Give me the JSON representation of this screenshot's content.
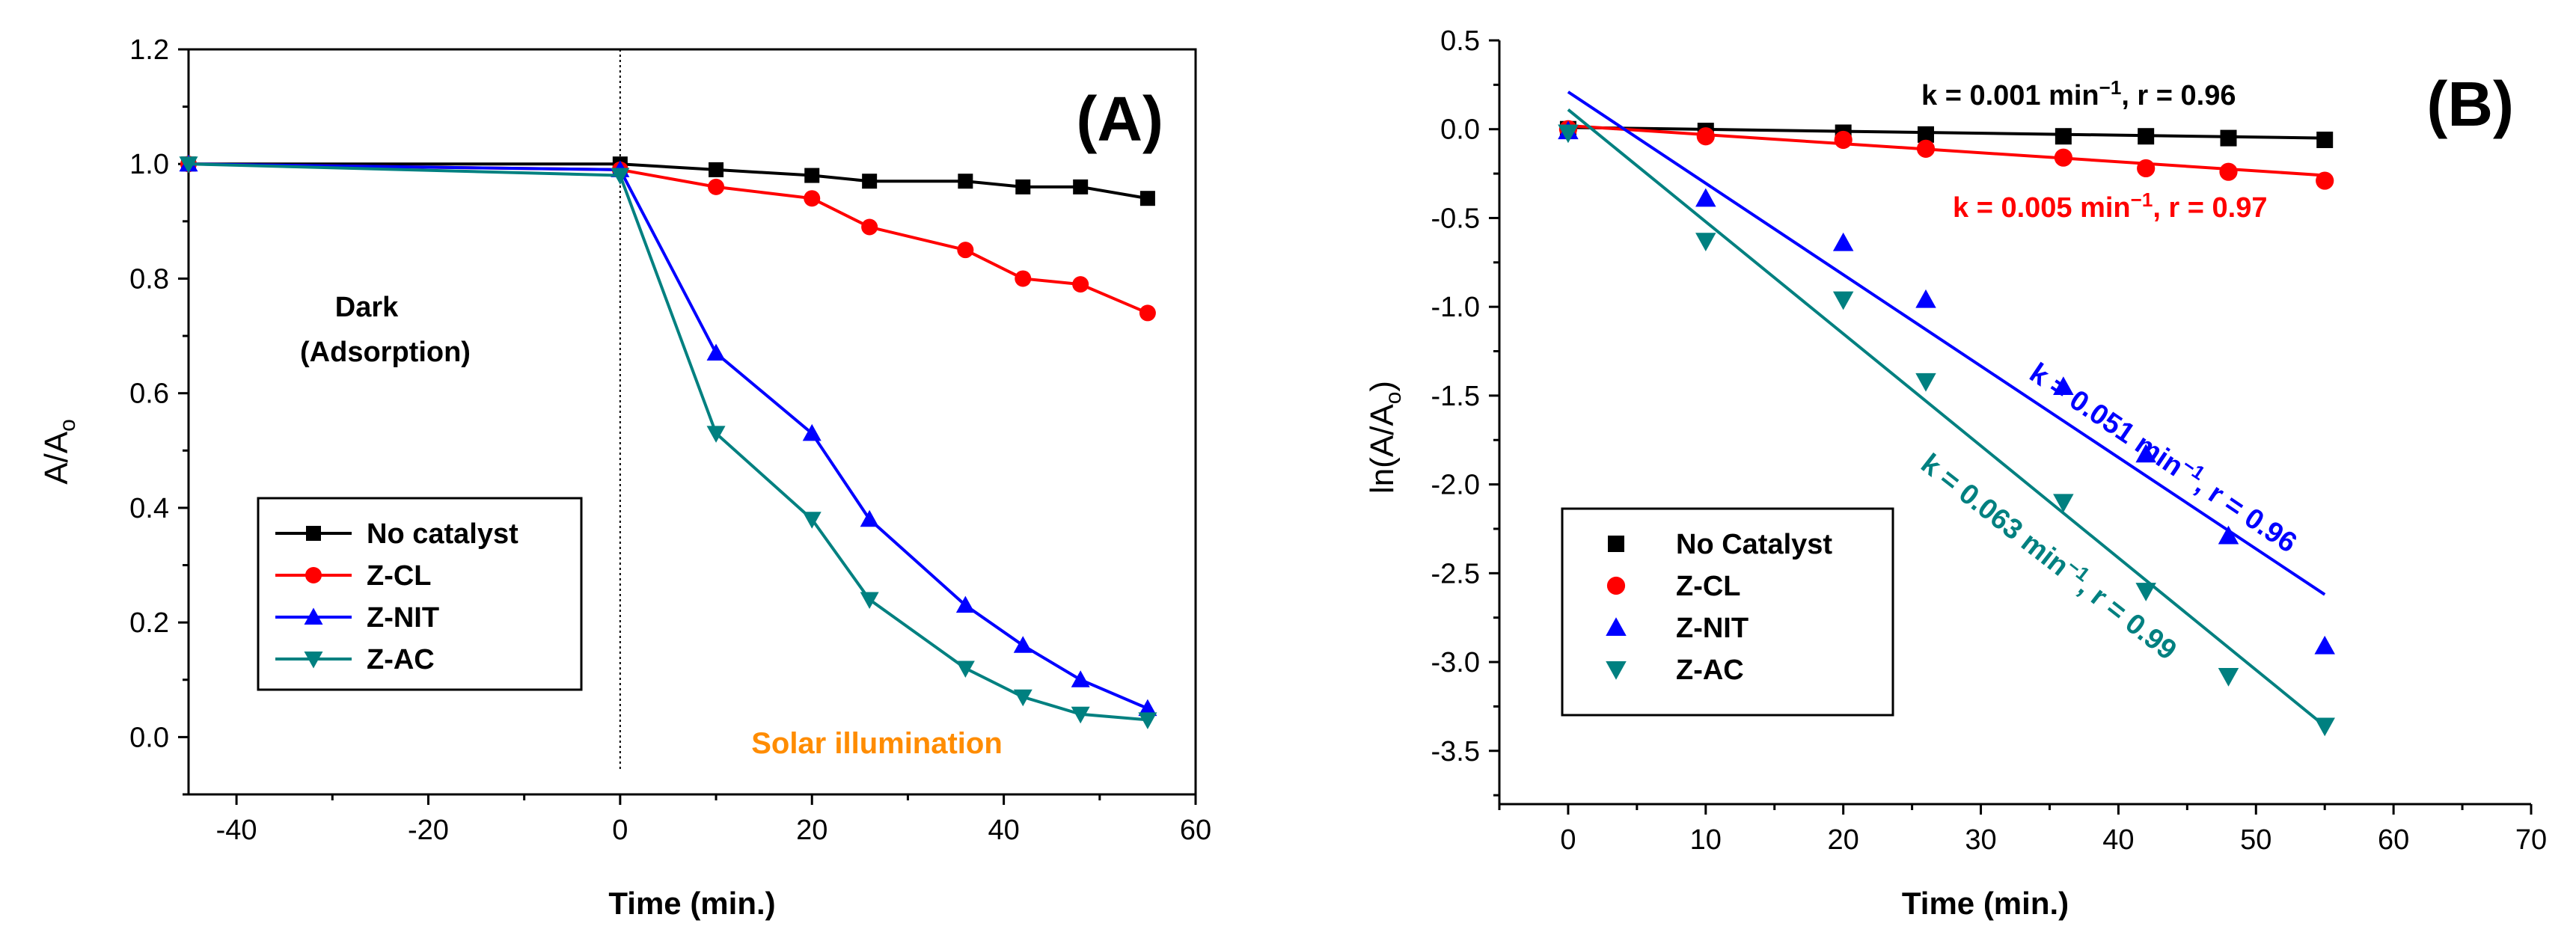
{
  "chart_data": [
    {
      "type": "line",
      "panel_label": "(A)",
      "xlabel": "Time (min.)",
      "ylabel": "A/A",
      "ylabel_sub": "o",
      "xlim": [
        -45,
        60
      ],
      "ylim": [
        -0.1,
        1.2
      ],
      "xticks": [
        -40,
        -20,
        0,
        20,
        40,
        60
      ],
      "yticks": [
        0.0,
        0.2,
        0.4,
        0.6,
        0.8,
        1.0,
        1.2
      ],
      "ytick_labels": [
        "0.0",
        "0.2",
        "0.4",
        "0.6",
        "0.8",
        "1.0",
        "1.2"
      ],
      "divider_x": 0,
      "annotations": {
        "dark_line1": "Dark",
        "dark_line2": "(Adsorption)",
        "solar": "Solar illumination"
      },
      "legend": [
        "No catalyst",
        "Z-CL",
        "Z-NIT",
        "Z-AC"
      ],
      "series": [
        {
          "name": "No catalyst",
          "color": "#000000",
          "marker": "square",
          "x": [
            -45,
            0,
            10,
            20,
            26,
            36,
            42,
            48,
            55
          ],
          "y": [
            1.0,
            1.0,
            0.99,
            0.98,
            0.97,
            0.97,
            0.96,
            0.96,
            0.94
          ]
        },
        {
          "name": "Z-CL",
          "color": "#ff0000",
          "marker": "circle",
          "x": [
            -45,
            0,
            10,
            20,
            26,
            36,
            42,
            48,
            55
          ],
          "y": [
            1.0,
            0.99,
            0.96,
            0.94,
            0.89,
            0.85,
            0.8,
            0.79,
            0.74
          ]
        },
        {
          "name": "Z-NIT",
          "color": "#0000ff",
          "marker": "triangle-up",
          "x": [
            -45,
            0,
            10,
            20,
            26,
            36,
            42,
            48,
            55
          ],
          "y": [
            1.0,
            0.99,
            0.67,
            0.53,
            0.38,
            0.23,
            0.16,
            0.1,
            0.05
          ]
        },
        {
          "name": "Z-AC",
          "color": "#008080",
          "marker": "triangle-down",
          "x": [
            -45,
            0,
            10,
            20,
            26,
            36,
            42,
            48,
            55
          ],
          "y": [
            1.0,
            0.98,
            0.53,
            0.38,
            0.24,
            0.12,
            0.07,
            0.04,
            0.03
          ]
        }
      ]
    },
    {
      "type": "scatter",
      "panel_label": "(B)",
      "xlabel": "Time (min.)",
      "ylabel": "ln(A/A",
      "ylabel_sub": "o",
      "ylabel_end": ")",
      "xlim": [
        -5,
        70
      ],
      "ylim": [
        -3.8,
        0.5
      ],
      "xticks": [
        0,
        10,
        20,
        30,
        40,
        50,
        60,
        70
      ],
      "yticks": [
        0.5,
        0.0,
        -0.5,
        -1.0,
        -1.5,
        -2.0,
        -2.5,
        -3.0,
        -3.5
      ],
      "ytick_labels": [
        "0.5",
        "0.0",
        "-0.5",
        "-1.0",
        "-1.5",
        "-2.0",
        "-2.5",
        "-3.0",
        "-3.5"
      ],
      "legend": [
        "No Catalyst",
        "Z-CL",
        "Z-NIT",
        "Z-AC"
      ],
      "series": [
        {
          "name": "No Catalyst",
          "color": "#000000",
          "marker": "square",
          "x": [
            0,
            10,
            20,
            26,
            36,
            42,
            48,
            55
          ],
          "y": [
            0.0,
            -0.01,
            -0.02,
            -0.03,
            -0.04,
            -0.04,
            -0.05,
            -0.06
          ],
          "fit": {
            "x0": 0,
            "y0": 0.01,
            "x1": 55,
            "y1": -0.05
          },
          "label": {
            "k_text": "k = 0.001 min",
            "r_text": ", r = 0.96",
            "angle": 0
          }
        },
        {
          "name": "Z-CL",
          "color": "#ff0000",
          "marker": "circle",
          "x": [
            0,
            10,
            20,
            26,
            36,
            42,
            48,
            55
          ],
          "y": [
            0.0,
            -0.04,
            -0.06,
            -0.11,
            -0.16,
            -0.22,
            -0.24,
            -0.29
          ],
          "fit": {
            "x0": 0,
            "y0": 0.02,
            "x1": 55,
            "y1": -0.26
          },
          "label": {
            "k_text": "k = 0.005 min",
            "r_text": ", r = 0.97",
            "angle": 0
          }
        },
        {
          "name": "Z-NIT",
          "color": "#0000ff",
          "marker": "triangle-up",
          "x": [
            0,
            10,
            20,
            26,
            36,
            42,
            48,
            55
          ],
          "y": [
            -0.01,
            -0.39,
            -0.64,
            -0.96,
            -1.45,
            -1.83,
            -2.29,
            -2.91
          ],
          "fit": {
            "x0": 0,
            "y0": 0.21,
            "x1": 55,
            "y1": -2.62
          },
          "label": {
            "k_text": "k = 0.051 min",
            "r_text": ", r = 0.96",
            "angle": 34
          }
        },
        {
          "name": "Z-AC",
          "color": "#008080",
          "marker": "triangle-down",
          "x": [
            0,
            10,
            20,
            26,
            36,
            42,
            48,
            55
          ],
          "y": [
            -0.02,
            -0.63,
            -0.96,
            -1.42,
            -2.1,
            -2.6,
            -3.08,
            -3.36
          ],
          "fit": {
            "x0": 0,
            "y0": 0.11,
            "x1": 55,
            "y1": -3.36
          },
          "label": {
            "k_text": "k = 0.063 min",
            "r_text": ", r = 0.99",
            "angle": 38
          }
        }
      ]
    }
  ]
}
